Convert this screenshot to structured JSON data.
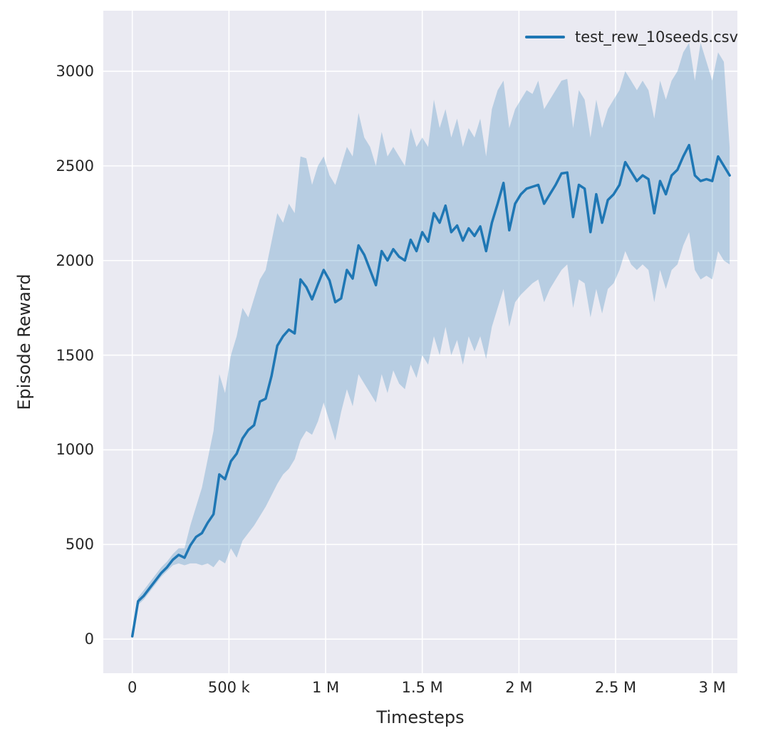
{
  "figure": {
    "background": "#ffffff"
  },
  "axes_style": {
    "background": "#eaeaf2",
    "grid_color": "#ffffff",
    "text_color": "#262626"
  },
  "legend": {
    "label": "test_rew_10seeds.csv"
  },
  "chart_data": {
    "type": "line",
    "title": "",
    "xlabel": "Timesteps",
    "ylabel": "Episode Reward",
    "legend_entries": [
      "test_rew_10seeds.csv"
    ],
    "legend_position": "upper right",
    "grid": true,
    "line_color": "#1f77b4",
    "band_color": "#1f77b4",
    "band_alpha": 0.25,
    "x_unit": 1000,
    "x_unit_note": "x values are in thousands of timesteps",
    "xlim": [
      -150,
      3130
    ],
    "ylim": [
      -180,
      3320
    ],
    "xticks": {
      "values": [
        0,
        500,
        1000,
        1500,
        2000,
        2500,
        3000
      ],
      "labels": [
        "0",
        "500 k",
        "1 M",
        "1.5 M",
        "2 M",
        "2.5 M",
        "3 M"
      ]
    },
    "yticks": {
      "values": [
        0,
        500,
        1000,
        1500,
        2000,
        2500,
        3000
      ],
      "labels": [
        "0",
        "500",
        "1000",
        "1500",
        "2000",
        "2500",
        "3000"
      ]
    },
    "x": [
      0,
      30,
      60,
      90,
      120,
      150,
      180,
      210,
      240,
      270,
      300,
      330,
      360,
      390,
      420,
      450,
      480,
      510,
      540,
      570,
      600,
      630,
      660,
      690,
      720,
      750,
      780,
      810,
      840,
      870,
      900,
      930,
      960,
      990,
      1020,
      1050,
      1080,
      1110,
      1140,
      1170,
      1200,
      1230,
      1260,
      1290,
      1320,
      1350,
      1380,
      1410,
      1440,
      1470,
      1500,
      1530,
      1560,
      1590,
      1620,
      1650,
      1680,
      1710,
      1740,
      1770,
      1800,
      1830,
      1860,
      1890,
      1920,
      1950,
      1980,
      2010,
      2040,
      2070,
      2100,
      2130,
      2160,
      2190,
      2220,
      2250,
      2280,
      2310,
      2340,
      2370,
      2400,
      2430,
      2460,
      2490,
      2520,
      2550,
      2580,
      2610,
      2640,
      2670,
      2700,
      2730,
      2760,
      2790,
      2820,
      2850,
      2880,
      2910,
      2940,
      2970,
      3000,
      3030,
      3060,
      3090
    ],
    "series": [
      {
        "name": "test_rew_10seeds.csv",
        "values": [
          15,
          200,
          230,
          270,
          310,
          350,
          380,
          420,
          445,
          430,
          495,
          540,
          560,
          615,
          660,
          870,
          845,
          940,
          980,
          1060,
          1105,
          1130,
          1255,
          1270,
          1390,
          1550,
          1600,
          1635,
          1615,
          1900,
          1860,
          1795,
          1875,
          1950,
          1895,
          1780,
          1800,
          1950,
          1905,
          2080,
          2030,
          1950,
          1870,
          2050,
          2000,
          2060,
          2020,
          2000,
          2110,
          2050,
          2150,
          2100,
          2250,
          2200,
          2290,
          2150,
          2185,
          2105,
          2170,
          2130,
          2180,
          2050,
          2200,
          2300,
          2410,
          2160,
          2300,
          2350,
          2380,
          2390,
          2400,
          2300,
          2350,
          2400,
          2460,
          2465,
          2230,
          2400,
          2380,
          2150,
          2350,
          2200,
          2320,
          2350,
          2400,
          2520,
          2470,
          2420,
          2450,
          2430,
          2250,
          2420,
          2350,
          2450,
          2480,
          2550,
          2610,
          2450,
          2420,
          2430,
          2420,
          2550,
          2500,
          2450
        ]
      }
    ],
    "band": {
      "lower": [
        10,
        180,
        210,
        250,
        290,
        330,
        360,
        390,
        400,
        390,
        400,
        400,
        390,
        400,
        380,
        420,
        400,
        480,
        430,
        520,
        560,
        600,
        650,
        700,
        760,
        820,
        870,
        900,
        950,
        1050,
        1100,
        1080,
        1150,
        1250,
        1150,
        1050,
        1200,
        1320,
        1230,
        1400,
        1350,
        1300,
        1250,
        1400,
        1300,
        1420,
        1350,
        1320,
        1450,
        1380,
        1500,
        1450,
        1600,
        1500,
        1650,
        1500,
        1580,
        1450,
        1600,
        1520,
        1600,
        1480,
        1650,
        1750,
        1850,
        1650,
        1780,
        1820,
        1850,
        1880,
        1900,
        1780,
        1850,
        1900,
        1950,
        1980,
        1750,
        1900,
        1880,
        1700,
        1850,
        1720,
        1850,
        1880,
        1950,
        2050,
        1980,
        1950,
        1980,
        1950,
        1780,
        1950,
        1850,
        1950,
        1980,
        2080,
        2150,
        1950,
        1900,
        1920,
        1900,
        2050,
        2000,
        1980
      ],
      "upper": [
        25,
        220,
        260,
        300,
        340,
        380,
        410,
        450,
        480,
        480,
        600,
        700,
        800,
        950,
        1100,
        1400,
        1300,
        1500,
        1600,
        1750,
        1700,
        1800,
        1900,
        1950,
        2100,
        2250,
        2200,
        2300,
        2250,
        2550,
        2540,
        2400,
        2500,
        2550,
        2450,
        2400,
        2500,
        2600,
        2550,
        2780,
        2650,
        2600,
        2500,
        2680,
        2550,
        2600,
        2550,
        2500,
        2700,
        2600,
        2650,
        2600,
        2850,
        2700,
        2800,
        2650,
        2750,
        2600,
        2700,
        2650,
        2750,
        2550,
        2800,
        2900,
        2950,
        2700,
        2800,
        2850,
        2900,
        2880,
        2950,
        2800,
        2850,
        2900,
        2950,
        2960,
        2700,
        2900,
        2850,
        2650,
        2850,
        2700,
        2800,
        2850,
        2900,
        3000,
        2950,
        2900,
        2950,
        2900,
        2750,
        2950,
        2850,
        2950,
        3000,
        3100,
        3150,
        2950,
        3150,
        3050,
        2950,
        3100,
        3050,
        2600
      ]
    }
  }
}
